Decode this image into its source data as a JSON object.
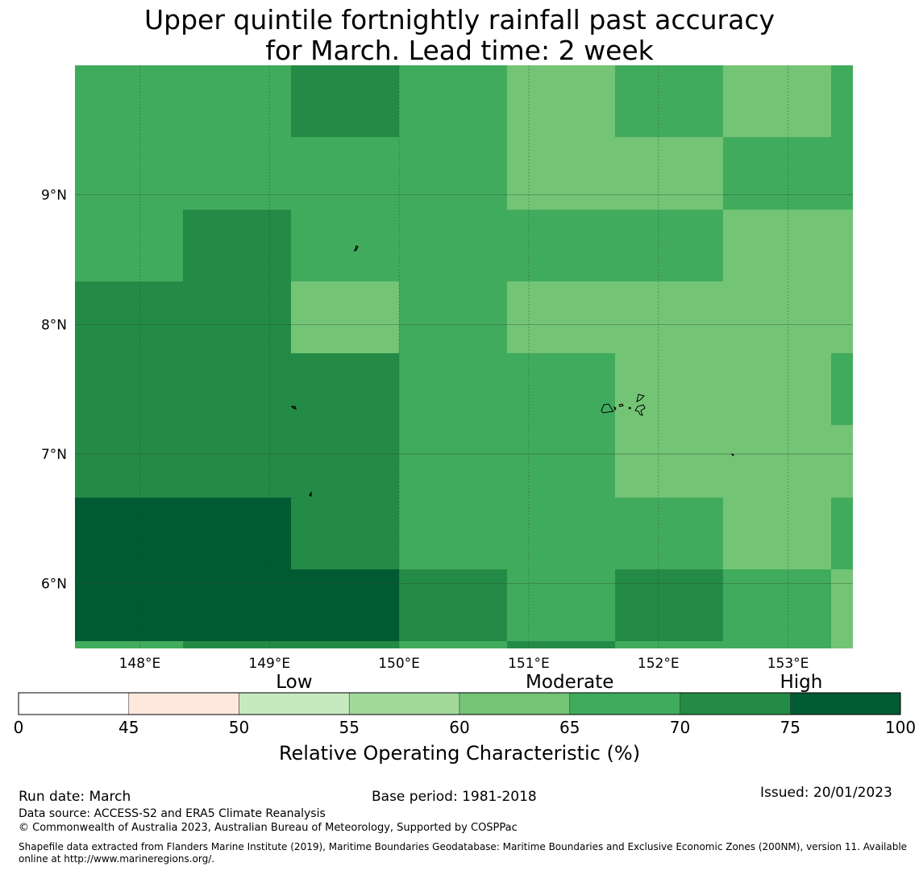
{
  "title_line1": "Upper quintile fortnightly rainfall past accuracy",
  "title_line2": "for March. Lead time: 2 week",
  "chart_data": {
    "type": "heatmap",
    "title": "Upper quintile fortnightly rainfall past accuracy for March. Lead time: 2 week",
    "xlabel": "",
    "ylabel": "",
    "lon_range": [
      147.5,
      153.5
    ],
    "lat_range": [
      5.5,
      10.0
    ],
    "lon_ticks": [
      148,
      149,
      150,
      151,
      152,
      153
    ],
    "lon_tick_labels": [
      "148°E",
      "149°E",
      "150°E",
      "151°E",
      "152°E",
      "153°E"
    ],
    "lat_ticks": [
      6,
      7,
      8,
      9
    ],
    "lat_tick_labels": [
      "6°N",
      "7°N",
      "8°N",
      "9°N"
    ],
    "lon_edges": [
      147.5,
      148.333,
      149.167,
      150.0,
      150.833,
      151.667,
      152.5,
      153.333,
      153.5
    ],
    "lat_edges": [
      10.0,
      9.444,
      8.889,
      8.333,
      7.778,
      7.222,
      6.667,
      6.111,
      5.556,
      5.5
    ],
    "roc_classes": [
      [
        67,
        67,
        72,
        67,
        62,
        67,
        62,
        67
      ],
      [
        67,
        67,
        67,
        67,
        62,
        62,
        67,
        67
      ],
      [
        67,
        72,
        67,
        67,
        67,
        67,
        62,
        62
      ],
      [
        72,
        72,
        62,
        67,
        62,
        62,
        62,
        62
      ],
      [
        72,
        72,
        72,
        67,
        67,
        62,
        62,
        67
      ],
      [
        72,
        72,
        72,
        67,
        67,
        62,
        62,
        62
      ],
      [
        77,
        77,
        72,
        67,
        67,
        67,
        62,
        67
      ],
      [
        77,
        77,
        77,
        72,
        67,
        72,
        67,
        62
      ],
      [
        67,
        72,
        72,
        67,
        72,
        67,
        67,
        62
      ]
    ]
  },
  "colorbar": {
    "label": "Relative Operating Characteristic (%)",
    "bounds": [
      0,
      45,
      50,
      55,
      60,
      65,
      70,
      75,
      100
    ],
    "tick_labels": [
      "0",
      "45",
      "50",
      "55",
      "60",
      "65",
      "70",
      "75",
      "100"
    ],
    "colors": [
      "#ffffff",
      "#fee8de",
      "#c7e9c0",
      "#a1d99b",
      "#74c476",
      "#41ab5d",
      "#238b45",
      "#005a32"
    ],
    "category_labels": [
      {
        "text": "Low",
        "at": 52.5
      },
      {
        "text": "Moderate",
        "at": 65
      },
      {
        "text": "High",
        "at": 77.5
      }
    ]
  },
  "colors": {
    "grid": "#2e4a2e",
    "coast": "#000000"
  },
  "footer": {
    "run_date": "Run date: March",
    "base_period": "Base period: 1981-2018",
    "issued": "Issued: 20/01/2023",
    "data_source": "Data source: ACCESS-S2 and ERA5 Climate Reanalysis",
    "copyright": "© Commonwealth of Australia 2023, Australian Bureau of Meteorology, Supported by COSPPac",
    "shapefile": "Shapefile data extracted from Flanders Marine Institute (2019), Maritime Boundaries Geodatabase: Maritime Boundaries and Exclusive Economic Zones (200NM), version 11. Available online at http://www.marineregions.org/."
  }
}
